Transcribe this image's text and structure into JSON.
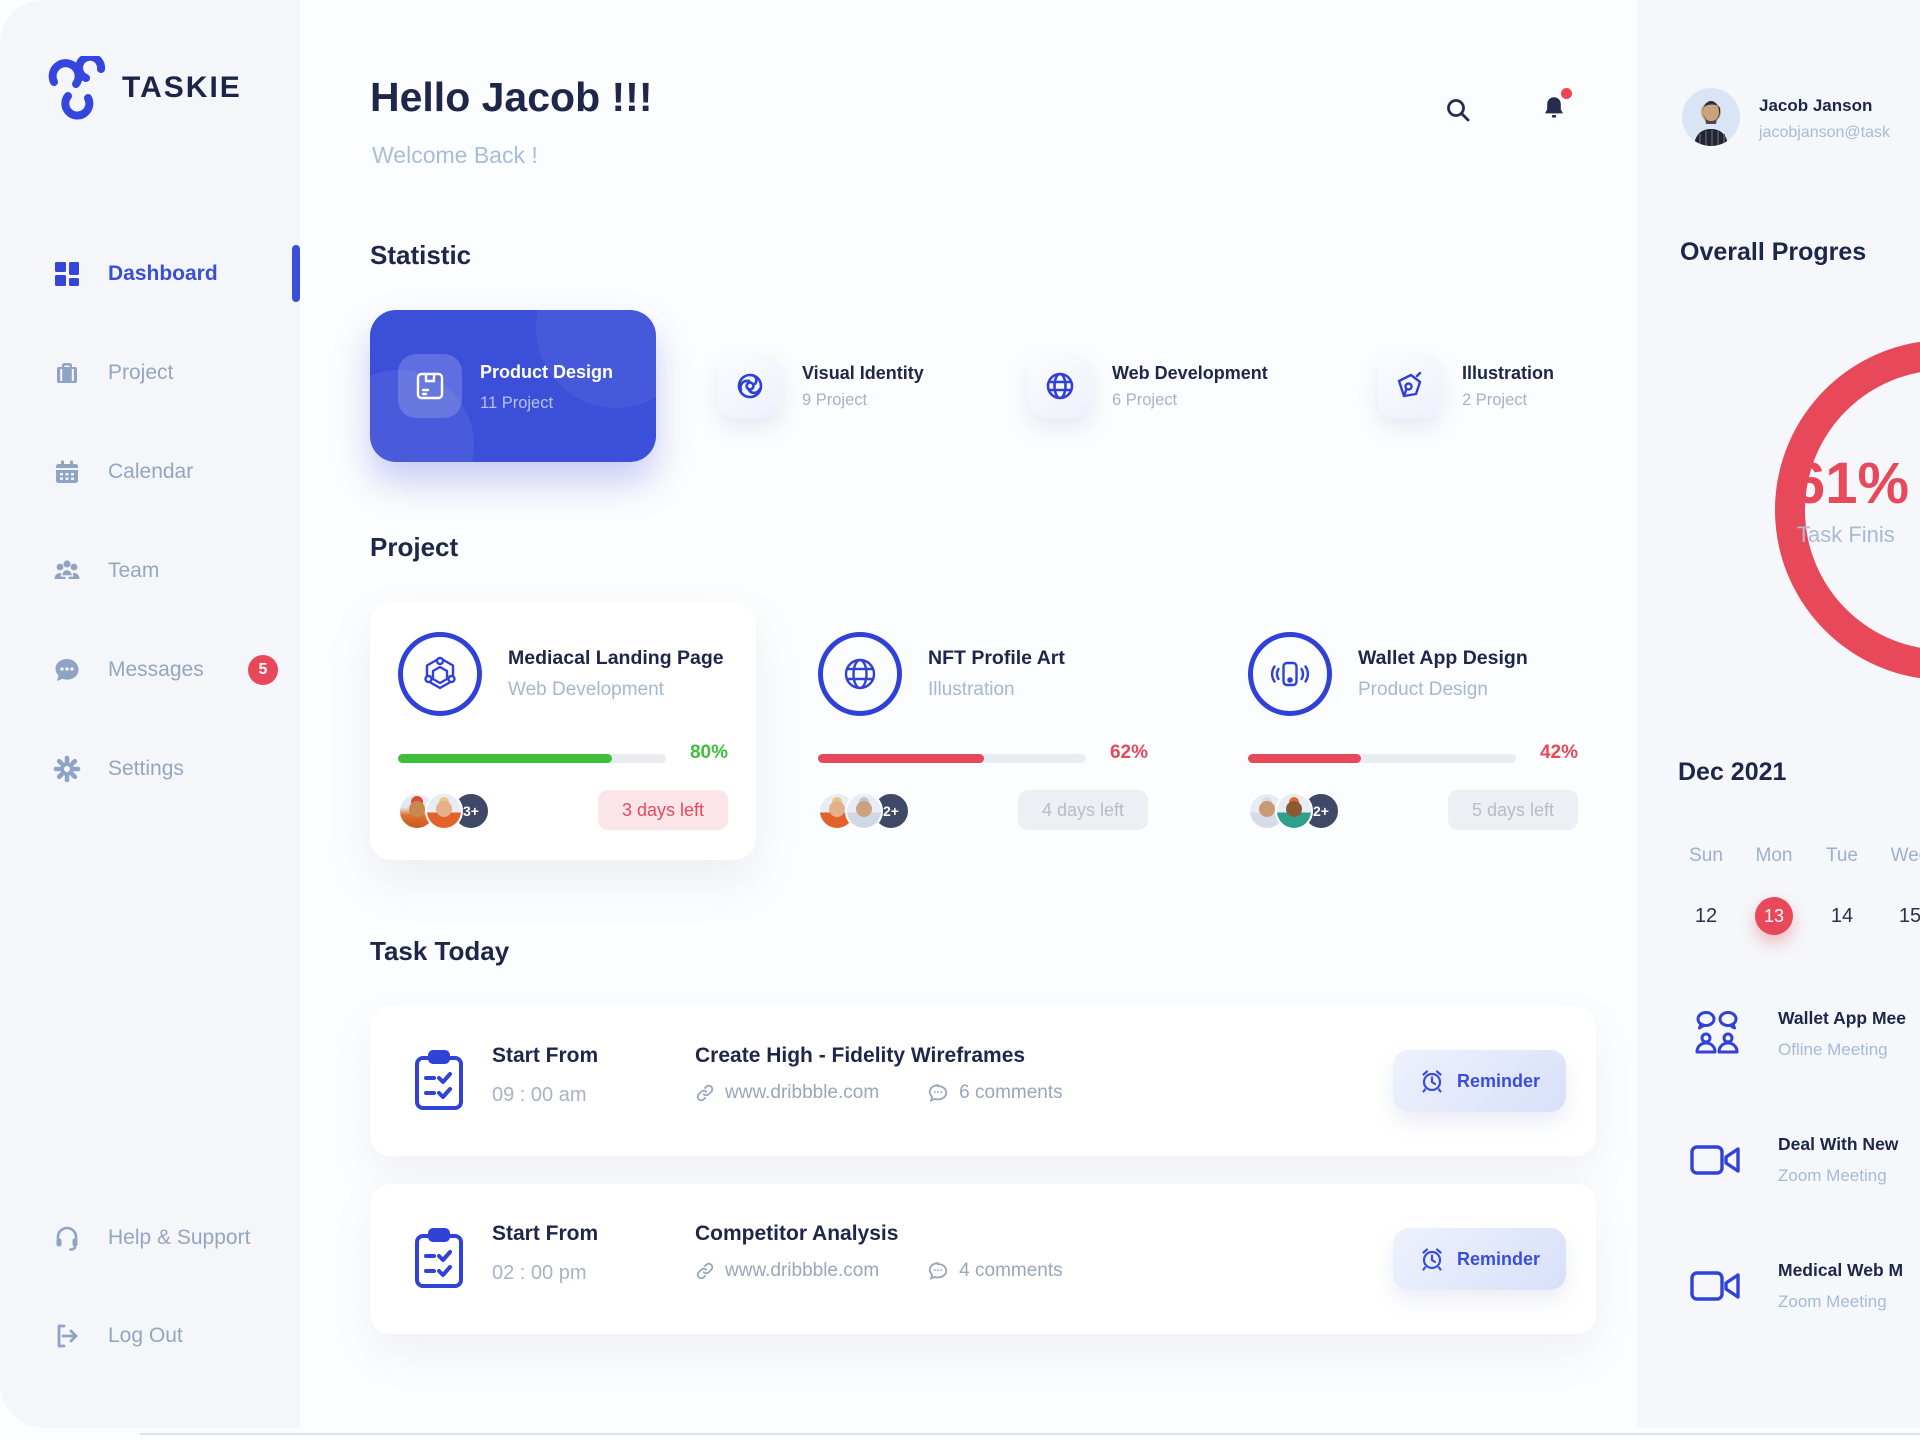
{
  "brand": {
    "name": "TASKIE"
  },
  "sidebar": {
    "items": [
      {
        "label": "Dashboard"
      },
      {
        "label": "Project"
      },
      {
        "label": "Calendar"
      },
      {
        "label": "Team"
      },
      {
        "label": "Messages",
        "badge": "5"
      },
      {
        "label": "Settings"
      }
    ],
    "footer": [
      {
        "label": "Help & Support"
      },
      {
        "label": "Log Out"
      }
    ]
  },
  "header": {
    "greeting": "Hello Jacob !!!",
    "welcome": "Welcome Back !"
  },
  "statistic": {
    "heading": "Statistic",
    "cards": [
      {
        "title": "Product Design",
        "count": "11 Project"
      },
      {
        "title": "Visual Identity",
        "count": "9 Project"
      },
      {
        "title": "Web Development",
        "count": "6 Project"
      },
      {
        "title": "Illustration",
        "count": "2 Project"
      }
    ]
  },
  "projects": {
    "heading": "Project",
    "cards": [
      {
        "title": "Mediacal Landing Page",
        "category": "Web Development",
        "percent": 80,
        "percent_label": "80%",
        "days_left": "3 days left",
        "more": "3+"
      },
      {
        "title": "NFT Profile Art",
        "category": "Illustration",
        "percent": 62,
        "percent_label": "62%",
        "days_left": "4 days left",
        "more": "2+"
      },
      {
        "title": "Wallet App Design",
        "category": "Product Design",
        "percent": 42,
        "percent_label": "42%",
        "days_left": "5 days left",
        "more": "2+"
      }
    ]
  },
  "tasks": {
    "heading": "Task Today",
    "rows": [
      {
        "start_label": "Start From",
        "time": "09 : 00 am",
        "title": "Create High - Fidelity Wireframes",
        "link": "www.dribbble.com",
        "comments": "6 comments",
        "action": "Reminder"
      },
      {
        "start_label": "Start From",
        "time": "02 : 00 pm",
        "title": "Competitor Analysis",
        "link": "www.dribbble.com",
        "comments": "4 comments",
        "action": "Reminder"
      }
    ]
  },
  "profile": {
    "name": "Jacob Janson",
    "email": "jacobjanson@task"
  },
  "overall": {
    "heading": "Overall Progres",
    "percent_label": "61%",
    "caption": "Task Finis"
  },
  "calendar": {
    "month": "Dec 2021",
    "day_names": [
      "Sun",
      "Mon",
      "Tue",
      "Wed"
    ],
    "dates": [
      "12",
      "13",
      "14",
      "15"
    ],
    "selected_date": "13"
  },
  "meetings": [
    {
      "title": "Wallet App Mee",
      "type": "Ofline Meeting"
    },
    {
      "title": "Deal With New",
      "type": "Zoom Meeting"
    },
    {
      "title": "Medical Web M",
      "type": "Zoom Meeting"
    }
  ],
  "colors": {
    "accent_blue": "#3a4ed8",
    "navy": "#1e2649",
    "red": "#e8495a",
    "green": "#3ec03a"
  }
}
